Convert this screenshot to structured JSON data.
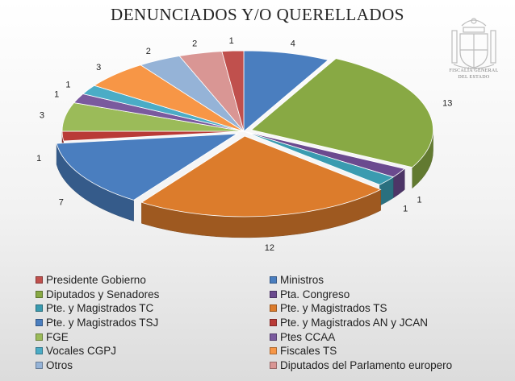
{
  "chart_data": {
    "type": "pie",
    "title": "DENUNCIADOS Y/O QUERELLADOS",
    "legend_placement": "bottom",
    "slices": [
      {
        "name": "Ministros",
        "value": 4,
        "color": "#4a7ebf"
      },
      {
        "name": "Diputados y Senadores",
        "value": 13,
        "color": "#88a944"
      },
      {
        "name": "Pta. Congreso",
        "value": 1,
        "color": "#6b4a8f"
      },
      {
        "name": "Pte. y Magistrados TC",
        "value": 1,
        "color": "#3a9bb0"
      },
      {
        "name": "Pte. y Magistrados TS",
        "value": 12,
        "color": "#dc7c2c"
      },
      {
        "name": "Pte. y Magistrados TSJ",
        "value": 7,
        "color": "#4a7ebf"
      },
      {
        "name": "Pte. y Magistrados AN y JCAN",
        "value": 1,
        "color": "#b93b37"
      },
      {
        "name": "FGE",
        "value": 3,
        "color": "#9bbb59"
      },
      {
        "name": "Ptes CCAA",
        "value": 1,
        "color": "#7a5a9e"
      },
      {
        "name": "Vocales CGPJ",
        "value": 1,
        "color": "#4bacc6"
      },
      {
        "name": "Fiscales TS",
        "value": 3,
        "color": "#f79646"
      },
      {
        "name": "Otros",
        "value": 2,
        "color": "#95b3d7"
      },
      {
        "name": "Diputados del Parlamento europero",
        "value": 2,
        "color": "#d99694"
      },
      {
        "name": "Presidente Gobierno",
        "value": 1,
        "color": "#c0504d"
      }
    ],
    "legend": [
      "Presidente Gobierno",
      "Ministros",
      "Diputados y Senadores",
      "Pta. Congreso",
      "Pte. y Magistrados TC",
      "Pte. y Magistrados TS",
      "Pte. y Magistrados TSJ",
      "Pte. y Magistrados AN y JCAN",
      "FGE",
      "Ptes CCAA",
      "Vocales CGPJ",
      "Fiscales TS",
      "Otros",
      "Diputados del Parlamento europero"
    ]
  },
  "seal": {
    "caption_line1": "FISCALÍA GENERAL",
    "caption_line2": "DEL ESTADO"
  }
}
